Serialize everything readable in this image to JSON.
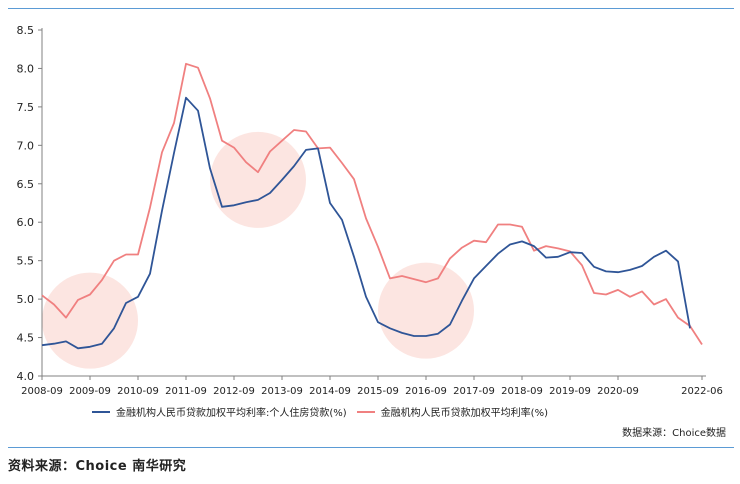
{
  "chart_data": {
    "type": "line",
    "x_ticks": [
      "2008-09",
      "2009-09",
      "2010-09",
      "2011-09",
      "2012-09",
      "2013-09",
      "2014-09",
      "2015-09",
      "2016-09",
      "2017-09",
      "2018-09",
      "2019-09",
      "2020-09",
      "2022-06"
    ],
    "ylim": [
      4.0,
      8.5
    ],
    "y_ticks": [
      "4.0",
      "4.5",
      "5.0",
      "5.5",
      "6.0",
      "6.5",
      "7.0",
      "7.5",
      "8.0",
      "8.5"
    ],
    "series": [
      {
        "name": "金融机构人民币贷款加权平均利率:个人住房贷款(%)",
        "color": "#2f5597",
        "points": [
          [
            "2008-09",
            4.4
          ],
          [
            "2008-12",
            4.42
          ],
          [
            "2009-03",
            4.45
          ],
          [
            "2009-06",
            4.36
          ],
          [
            "2009-09",
            4.38
          ],
          [
            "2009-12",
            4.42
          ],
          [
            "2010-03",
            4.62
          ],
          [
            "2010-06",
            4.95
          ],
          [
            "2010-09",
            5.03
          ],
          [
            "2010-12",
            5.33
          ],
          [
            "2011-03",
            6.15
          ],
          [
            "2011-06",
            6.9
          ],
          [
            "2011-09",
            7.62
          ],
          [
            "2011-12",
            7.45
          ],
          [
            "2012-03",
            6.7
          ],
          [
            "2012-06",
            6.2
          ],
          [
            "2012-09",
            6.22
          ],
          [
            "2012-12",
            6.26
          ],
          [
            "2013-03",
            6.29
          ],
          [
            "2013-06",
            6.38
          ],
          [
            "2013-09",
            6.55
          ],
          [
            "2013-12",
            6.73
          ],
          [
            "2014-03",
            6.94
          ],
          [
            "2014-06",
            6.96
          ],
          [
            "2014-09",
            6.25
          ],
          [
            "2014-12",
            6.03
          ],
          [
            "2015-03",
            5.55
          ],
          [
            "2015-06",
            5.03
          ],
          [
            "2015-09",
            4.7
          ],
          [
            "2015-12",
            4.62
          ],
          [
            "2016-03",
            4.56
          ],
          [
            "2016-06",
            4.52
          ],
          [
            "2016-09",
            4.52
          ],
          [
            "2016-12",
            4.55
          ],
          [
            "2017-03",
            4.67
          ],
          [
            "2017-06",
            4.98
          ],
          [
            "2017-09",
            5.27
          ],
          [
            "2017-12",
            5.43
          ],
          [
            "2018-03",
            5.59
          ],
          [
            "2018-06",
            5.71
          ],
          [
            "2018-09",
            5.75
          ],
          [
            "2018-12",
            5.69
          ],
          [
            "2019-03",
            5.54
          ],
          [
            "2019-06",
            5.55
          ],
          [
            "2019-09",
            5.61
          ],
          [
            "2019-12",
            5.6
          ],
          [
            "2020-03",
            5.42
          ],
          [
            "2020-06",
            5.36
          ],
          [
            "2020-09",
            5.35
          ],
          [
            "2020-12",
            5.38
          ],
          [
            "2021-03",
            5.43
          ],
          [
            "2021-06",
            5.55
          ],
          [
            "2021-09",
            5.63
          ],
          [
            "2021-12",
            5.49
          ],
          [
            "2022-03",
            4.62
          ]
        ]
      },
      {
        "name": "金融机构人民币贷款加权平均利率(%)",
        "color": "#f08080",
        "points": [
          [
            "2008-09",
            5.05
          ],
          [
            "2008-12",
            4.93
          ],
          [
            "2009-03",
            4.76
          ],
          [
            "2009-06",
            4.99
          ],
          [
            "2009-09",
            5.06
          ],
          [
            "2009-12",
            5.25
          ],
          [
            "2010-03",
            5.5
          ],
          [
            "2010-06",
            5.58
          ],
          [
            "2010-09",
            5.58
          ],
          [
            "2010-12",
            6.19
          ],
          [
            "2011-03",
            6.91
          ],
          [
            "2011-06",
            7.29
          ],
          [
            "2011-09",
            8.06
          ],
          [
            "2011-12",
            8.01
          ],
          [
            "2012-03",
            7.61
          ],
          [
            "2012-06",
            7.06
          ],
          [
            "2012-09",
            6.97
          ],
          [
            "2012-12",
            6.78
          ],
          [
            "2013-03",
            6.65
          ],
          [
            "2013-06",
            6.92
          ],
          [
            "2013-09",
            7.06
          ],
          [
            "2013-12",
            7.2
          ],
          [
            "2014-03",
            7.18
          ],
          [
            "2014-06",
            6.96
          ],
          [
            "2014-09",
            6.97
          ],
          [
            "2014-12",
            6.77
          ],
          [
            "2015-03",
            6.56
          ],
          [
            "2015-06",
            6.05
          ],
          [
            "2015-09",
            5.68
          ],
          [
            "2015-12",
            5.27
          ],
          [
            "2016-03",
            5.3
          ],
          [
            "2016-06",
            5.26
          ],
          [
            "2016-09",
            5.22
          ],
          [
            "2016-12",
            5.27
          ],
          [
            "2017-03",
            5.53
          ],
          [
            "2017-06",
            5.67
          ],
          [
            "2017-09",
            5.76
          ],
          [
            "2017-12",
            5.74
          ],
          [
            "2018-03",
            5.97
          ],
          [
            "2018-06",
            5.97
          ],
          [
            "2018-09",
            5.94
          ],
          [
            "2018-12",
            5.63
          ],
          [
            "2019-03",
            5.69
          ],
          [
            "2019-06",
            5.66
          ],
          [
            "2019-09",
            5.62
          ],
          [
            "2019-12",
            5.44
          ],
          [
            "2020-03",
            5.08
          ],
          [
            "2020-06",
            5.06
          ],
          [
            "2020-09",
            5.12
          ],
          [
            "2020-12",
            5.03
          ],
          [
            "2021-03",
            5.1
          ],
          [
            "2021-06",
            4.93
          ],
          [
            "2021-09",
            5.0
          ],
          [
            "2021-12",
            4.76
          ],
          [
            "2022-03",
            4.65
          ],
          [
            "2022-06",
            4.41
          ]
        ]
      }
    ],
    "highlight_periods": [
      {
        "center_x": "2009-09",
        "center_y": 4.72
      },
      {
        "center_x": "2013-03",
        "center_y": 6.55
      },
      {
        "center_x": "2016-09",
        "center_y": 4.85
      }
    ],
    "grid": false,
    "legend_position": "bottom"
  },
  "note": "数据来源：Choice数据",
  "source": "资料来源：Choice  南华研究",
  "colors": {
    "accent_rule": "#5b9bd5",
    "highlight": "#fbe1dc"
  }
}
